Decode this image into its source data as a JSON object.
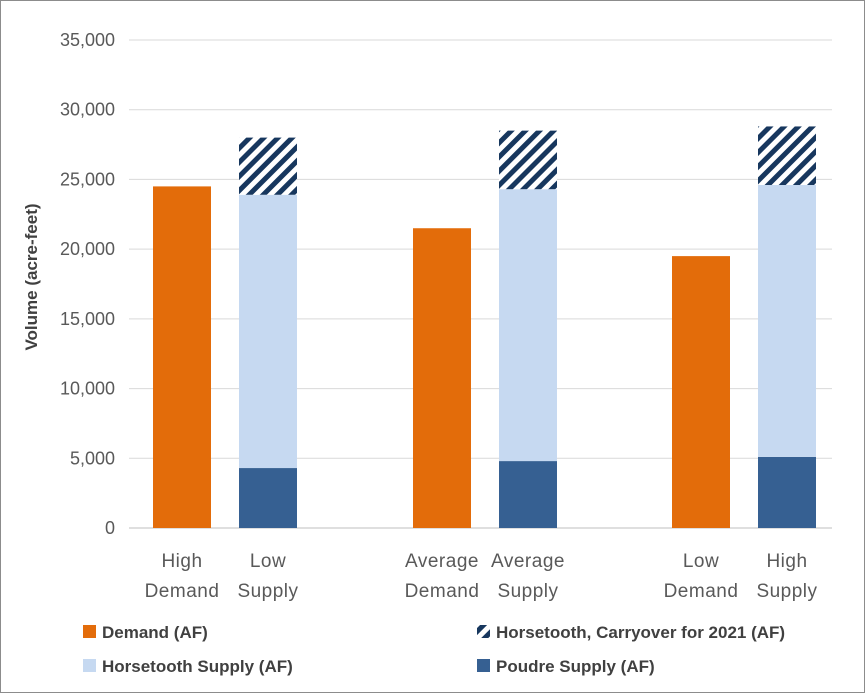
{
  "chart_data": {
    "type": "bar",
    "stacked": true,
    "title": "",
    "xlabel": "",
    "ylabel": "Volume (acre-feet)",
    "ylim": [
      0,
      35000
    ],
    "yticks": [
      0,
      5000,
      10000,
      15000,
      20000,
      25000,
      30000,
      35000
    ],
    "ytick_labels": [
      "0",
      "5,000",
      "10,000",
      "15,000",
      "20,000",
      "25,000",
      "30,000",
      "35,000"
    ],
    "grid": true,
    "legend_position": "bottom",
    "categories": [
      {
        "lines": [
          "High",
          "Demand"
        ],
        "group": 1
      },
      {
        "lines": [
          "Low",
          "Supply"
        ],
        "group": 1
      },
      {
        "lines": [
          "Average",
          "Demand"
        ],
        "group": 2
      },
      {
        "lines": [
          "Average",
          "Supply"
        ],
        "group": 2
      },
      {
        "lines": [
          "Low",
          "Demand"
        ],
        "group": 3
      },
      {
        "lines": [
          "High",
          "Supply"
        ],
        "group": 3
      }
    ],
    "series": [
      {
        "name": "Demand (AF)",
        "color": "#e36c0a",
        "pattern": "solid",
        "values": [
          24500,
          0,
          21500,
          0,
          19500,
          0
        ]
      },
      {
        "name": "Poudre Supply (AF)",
        "color": "#366092",
        "pattern": "solid",
        "values": [
          0,
          4300,
          0,
          4800,
          0,
          5100
        ]
      },
      {
        "name": "Horsetooth Supply (AF)",
        "color": "#c6d9f1",
        "pattern": "solid",
        "values": [
          0,
          19600,
          0,
          19500,
          0,
          19500
        ]
      },
      {
        "name": "Horsetooth, Carryover for 2021 (AF)",
        "color": "#17375e",
        "pattern": "hatch",
        "values": [
          0,
          4100,
          0,
          4200,
          0,
          4200
        ]
      }
    ],
    "legend_order": [
      "Demand (AF)",
      "Horsetooth, Carryover for 2021 (AF)",
      "Horsetooth Supply (AF)",
      "Poudre Supply (AF)"
    ]
  }
}
